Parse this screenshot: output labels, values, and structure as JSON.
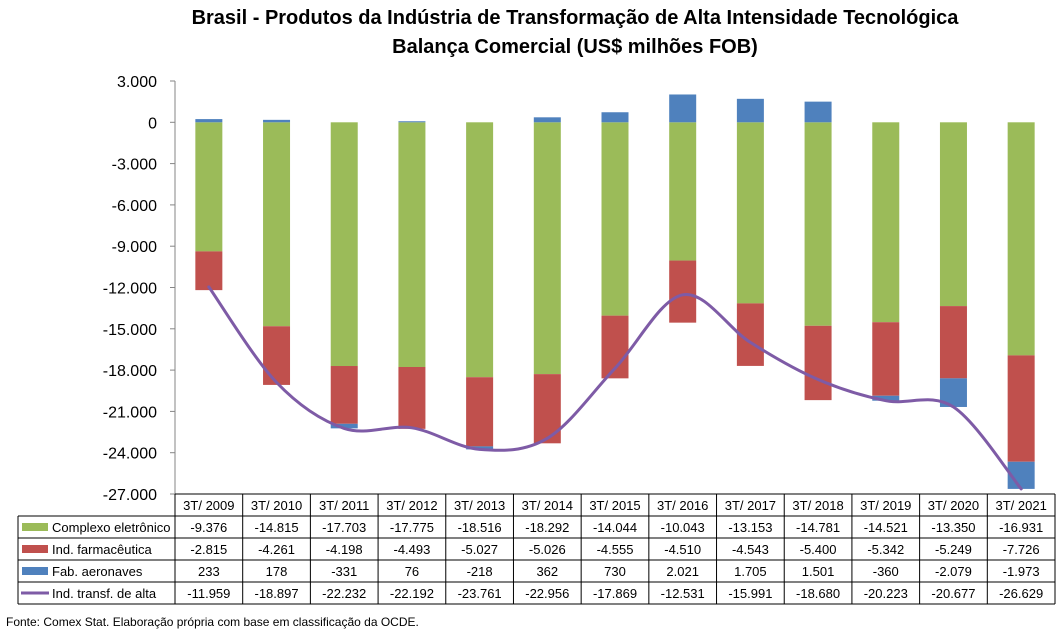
{
  "title_lines": [
    "Brasil - Produtos da Indústria de Transformação de Alta Intensidade Tecnológica",
    "Balança Comercial (US$ milhões FOB)"
  ],
  "source": "Fonte: Comex Stat. Elaboração própria com base em classificação da OCDE.",
  "colors": {
    "complexo": "#9BBB59",
    "farma": "#C0504D",
    "aeronaves": "#4F81BD",
    "line": "#7E5BA6"
  },
  "chart_data": {
    "type": "bar",
    "stacked": true,
    "categories": [
      "3T/ 2009",
      "3T/ 2010",
      "3T/ 2011",
      "3T/ 2012",
      "3T/ 2013",
      "3T/ 2014",
      "3T/ 2015",
      "3T/ 2016",
      "3T/ 2017",
      "3T/ 2018",
      "3T/ 2019",
      "3T/ 2020",
      "3T/ 2021"
    ],
    "ylim": [
      -27000,
      3000
    ],
    "yticks": [
      3000,
      0,
      -3000,
      -6000,
      -9000,
      -12000,
      -15000,
      -18000,
      -21000,
      -24000,
      -27000
    ],
    "ytick_labels": [
      "3.000",
      "0",
      "-3.000",
      "-6.000",
      "-9.000",
      "-12.000",
      "-15.000",
      "-18.000",
      "-21.000",
      "-24.000",
      "-27.000"
    ],
    "grid": false,
    "legend": "data-table",
    "series": [
      {
        "name": "Complexo eletrônico",
        "type": "bar",
        "color_key": "complexo",
        "values": [
          -9376,
          -14815,
          -17703,
          -17775,
          -18516,
          -18292,
          -14044,
          -10043,
          -13153,
          -14781,
          -14521,
          -13350,
          -16931
        ],
        "labels": [
          "-9.376",
          "-14.815",
          "-17.703",
          "-17.775",
          "-18.516",
          "-18.292",
          "-14.044",
          "-10.043",
          "-13.153",
          "-14.781",
          "-14.521",
          "-13.350",
          "-16.931"
        ]
      },
      {
        "name": "Ind. farmacêutica",
        "type": "bar",
        "color_key": "farma",
        "values": [
          -2815,
          -4261,
          -4198,
          -4493,
          -5027,
          -5026,
          -4555,
          -4510,
          -4543,
          -5400,
          -5342,
          -5249,
          -7726
        ],
        "labels": [
          "-2.815",
          "-4.261",
          "-4.198",
          "-4.493",
          "-5.027",
          "-5.026",
          "-4.555",
          "-4.510",
          "-4.543",
          "-5.400",
          "-5.342",
          "-5.249",
          "-7.726"
        ]
      },
      {
        "name": "Fab. aeronaves",
        "type": "bar",
        "color_key": "aeronaves",
        "values": [
          233,
          178,
          -331,
          76,
          -218,
          362,
          730,
          2021,
          1705,
          1501,
          -360,
          -2079,
          -1973
        ],
        "labels": [
          "233",
          "178",
          "-331",
          "76",
          "-218",
          "362",
          "730",
          "2.021",
          "1.705",
          "1.501",
          "-360",
          "-2.079",
          "-1.973"
        ]
      },
      {
        "name": "Ind. transf. de alta",
        "type": "line",
        "color_key": "line",
        "values": [
          -11959,
          -18897,
          -22232,
          -22192,
          -23761,
          -22956,
          -17869,
          -12531,
          -15991,
          -18680,
          -20223,
          -20677,
          -26629
        ],
        "labels": [
          "-11.959",
          "-18.897",
          "-22.232",
          "-22.192",
          "-23.761",
          "-22.956",
          "-17.869",
          "-12.531",
          "-15.991",
          "-18.680",
          "-20.223",
          "-20.677",
          "-26.629"
        ]
      }
    ]
  }
}
